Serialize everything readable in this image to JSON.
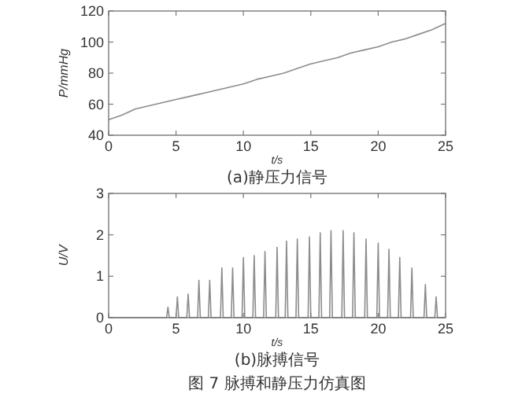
{
  "chart_data": [
    {
      "type": "line",
      "title": "(a)静压力信号",
      "xlabel": "t/s",
      "ylabel": "P/mmHg",
      "xlim": [
        0,
        25
      ],
      "ylim": [
        40,
        120
      ],
      "xticks": [
        0,
        5,
        10,
        15,
        20,
        25
      ],
      "yticks": [
        40,
        60,
        80,
        100,
        120
      ],
      "series": [
        {
          "color": "#8c8c8c",
          "x": [
            0,
            1,
            2,
            3,
            4,
            5,
            6,
            7,
            8,
            9,
            10,
            11,
            12,
            13,
            14,
            15,
            16,
            17,
            18,
            19,
            20,
            21,
            22,
            23,
            24,
            25
          ],
          "values": [
            50,
            53,
            57,
            59,
            61,
            63,
            65,
            67,
            69,
            71,
            73,
            76,
            78,
            80,
            83,
            86,
            88,
            90,
            93,
            95,
            97,
            100,
            102,
            105,
            108,
            112
          ]
        }
      ]
    },
    {
      "type": "line",
      "title": "(b)脉搏信号",
      "xlabel": "t/s",
      "ylabel": "U/V",
      "xlim": [
        0,
        25
      ],
      "ylim": [
        0,
        3
      ],
      "xticks": [
        0,
        5,
        10,
        15,
        20,
        25
      ],
      "yticks": [
        0,
        1,
        2,
        3
      ],
      "annotations": [
        "图 7  脉搏和静压力仿真图"
      ],
      "series": [
        {
          "color": "#8c8c8c",
          "x": [
            0,
            4.3,
            4.4,
            4.5,
            5.0,
            5.1,
            5.2,
            5.8,
            5.9,
            6.0,
            6.6,
            6.7,
            6.8,
            7.4,
            7.5,
            7.6,
            8.3,
            8.4,
            8.5,
            9.1,
            9.2,
            9.3,
            9.9,
            10.0,
            10.1,
            10.7,
            10.8,
            10.9,
            11.5,
            11.6,
            11.7,
            12.4,
            12.5,
            12.6,
            13.1,
            13.2,
            13.3,
            13.9,
            14.0,
            14.1,
            14.8,
            14.9,
            15.0,
            15.6,
            15.7,
            15.8,
            16.4,
            16.5,
            16.6,
            17.3,
            17.4,
            17.5,
            18.1,
            18.2,
            18.3,
            19.0,
            19.1,
            19.2,
            19.9,
            20.0,
            20.1,
            20.7,
            20.8,
            20.9,
            21.5,
            21.6,
            21.7,
            22.4,
            22.5,
            22.6,
            23.4,
            23.5,
            23.6,
            24.2,
            24.3,
            24.4,
            25
          ],
          "values": [
            0,
            0,
            0.25,
            0,
            0,
            0.5,
            0,
            0,
            0.57,
            0,
            0,
            0.9,
            0,
            0,
            0.9,
            0,
            0,
            1.2,
            0,
            0,
            1.2,
            0,
            0,
            1.45,
            0,
            0,
            1.5,
            0,
            0,
            1.6,
            0,
            0,
            1.7,
            0,
            0,
            1.85,
            0,
            0,
            1.9,
            0,
            0,
            1.95,
            0,
            0,
            2.05,
            0,
            0,
            2.1,
            0,
            0,
            2.1,
            0,
            0,
            2.05,
            0,
            0,
            1.9,
            0,
            0,
            1.8,
            0,
            0,
            1.65,
            0,
            0,
            1.45,
            0,
            0,
            1.2,
            0,
            0,
            0.8,
            0,
            0,
            0.5,
            0,
            0
          ]
        }
      ]
    }
  ]
}
